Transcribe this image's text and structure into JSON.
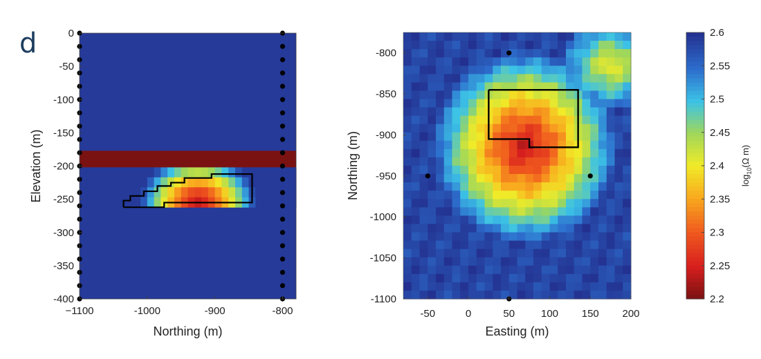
{
  "panel_label": "d",
  "colors": {
    "min_color": "#7a1212",
    "max_color": "#232f8e",
    "background_blue": "#2e47a6",
    "outline": "#000000"
  },
  "chart_data": [
    {
      "type": "heatmap",
      "title": "",
      "xlabel": "Northing (m)",
      "ylabel": "Elevation (m)",
      "xlim": [
        -1100,
        -780
      ],
      "ylim": [
        -400,
        0
      ],
      "xticks": [
        -1100,
        -1000,
        -900,
        -800
      ],
      "xtick_labels": [
        "−1100",
        "-1000",
        "-900",
        "-800"
      ],
      "yticks": [
        0,
        -50,
        -100,
        -150,
        -200,
        -250,
        -300,
        -350,
        -400
      ],
      "ytick_labels": [
        "0",
        "-50",
        "-100",
        "-150",
        "-200",
        "-250",
        "-300",
        "-350",
        "-400"
      ],
      "value_units": "log10(Ω m)",
      "background_value": 2.59,
      "band_top": {
        "y_range": [
          -177,
          -202
        ],
        "value": 2.2
      },
      "anomaly_band": {
        "y_range": [
          -202,
          -262
        ],
        "peak_x": -925,
        "peak_y": -255,
        "peak_value": 2.24
      },
      "target_outline": [
        [
          -1035,
          -262
        ],
        [
          -1035,
          -252
        ],
        [
          -1025,
          -252
        ],
        [
          -1025,
          -245
        ],
        [
          -1005,
          -245
        ],
        [
          -1005,
          -238
        ],
        [
          -985,
          -238
        ],
        [
          -985,
          -230
        ],
        [
          -965,
          -230
        ],
        [
          -965,
          -225
        ],
        [
          -945,
          -225
        ],
        [
          -945,
          -218
        ],
        [
          -905,
          -218
        ],
        [
          -905,
          -212
        ],
        [
          -845,
          -212
        ],
        [
          -845,
          -255
        ],
        [
          -975,
          -255
        ],
        [
          -975,
          -262
        ],
        [
          -1035,
          -262
        ]
      ],
      "boreholes": [
        {
          "x": -1100,
          "y_depths": [
            0,
            -20,
            -40,
            -60,
            -80,
            -100,
            -120,
            -140,
            -160,
            -180,
            -200,
            -220,
            -240,
            -260,
            -280,
            -300,
            -320,
            -340,
            -360,
            -380,
            -400
          ]
        },
        {
          "x": -800,
          "y_depths": [
            0,
            -20,
            -40,
            -60,
            -80,
            -100,
            -120,
            -140,
            -160,
            -180,
            -200,
            -220,
            -240,
            -260,
            -280,
            -300,
            -320,
            -340,
            -360,
            -380,
            -400
          ]
        }
      ]
    },
    {
      "type": "heatmap",
      "title": "",
      "xlabel": "Easting (m)",
      "ylabel": "Northing (m)",
      "xlim": [
        -80,
        200
      ],
      "ylim": [
        -1100,
        -775
      ],
      "xticks": [
        -50,
        0,
        50,
        100,
        150,
        200
      ],
      "xtick_labels": [
        "-50",
        "0",
        "50",
        "100",
        "150",
        "200"
      ],
      "yticks": [
        -800,
        -850,
        -900,
        -950,
        -1000,
        -1050,
        -1100
      ],
      "ytick_labels": [
        "-800",
        "-850",
        "-900",
        "-950",
        "-1000",
        "-1050",
        "-1100"
      ],
      "value_units": "log10(Ω m)",
      "anomaly_center": {
        "x": 70,
        "y": -915,
        "value": 2.24
      },
      "target_outline": [
        [
          25,
          -845
        ],
        [
          135,
          -845
        ],
        [
          135,
          -915
        ],
        [
          75,
          -915
        ],
        [
          75,
          -905
        ],
        [
          25,
          -905
        ],
        [
          25,
          -845
        ]
      ],
      "boreholes": [
        {
          "x": 50,
          "y": -800
        },
        {
          "x": -50,
          "y": -950
        },
        {
          "x": 150,
          "y": -950
        },
        {
          "x": 50,
          "y": -1100
        }
      ]
    }
  ],
  "colorbar": {
    "min": 2.2,
    "max": 2.6,
    "ticks": [
      "2.6",
      "2.55",
      "2.5",
      "2.45",
      "2.4",
      "2.35",
      "2.3",
      "2.25",
      "2.2"
    ],
    "tick_values": [
      2.6,
      2.55,
      2.5,
      2.45,
      2.4,
      2.35,
      2.3,
      2.25,
      2.2
    ],
    "label_prefix": "log",
    "label_sub": "10",
    "label_suffix": "(Ω m)"
  }
}
